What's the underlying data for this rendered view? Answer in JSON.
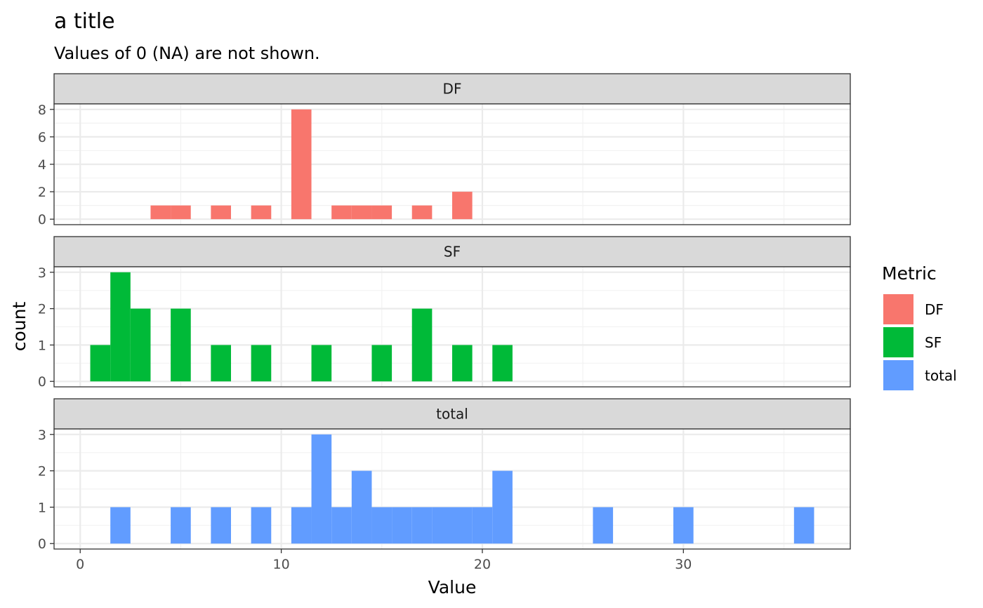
{
  "chart_data": {
    "type": "bar",
    "title": "a title",
    "subtitle": "Values of 0 (NA) are not shown.",
    "xlabel": "Value",
    "ylabel": "count",
    "xlim": [
      -1.3,
      38.3
    ],
    "x_ticks": [
      0,
      10,
      20,
      30
    ],
    "binwidth": 1,
    "grid": true,
    "legend": {
      "title": "Metric",
      "position": "right",
      "entries": [
        {
          "label": "DF",
          "color": "#F8766D"
        },
        {
          "label": "SF",
          "color": "#00BA38"
        },
        {
          "label": "total",
          "color": "#619CFF"
        }
      ]
    },
    "panels": [
      {
        "name": "DF",
        "color": "#F8766D",
        "ylim": [
          -0.4,
          8.4
        ],
        "y_ticks": [
          0,
          2,
          4,
          6,
          8
        ],
        "x": [
          4,
          5,
          7,
          9,
          11,
          13,
          14,
          15,
          17,
          19
        ],
        "counts": [
          1,
          1,
          1,
          1,
          8,
          1,
          1,
          1,
          1,
          2
        ]
      },
      {
        "name": "SF",
        "color": "#00BA38",
        "ylim": [
          -0.15,
          3.15
        ],
        "y_ticks": [
          0,
          1,
          2,
          3
        ],
        "x": [
          1,
          2,
          3,
          5,
          7,
          9,
          12,
          15,
          17,
          19,
          21
        ],
        "counts": [
          1,
          3,
          2,
          2,
          1,
          1,
          1,
          1,
          2,
          1,
          1
        ]
      },
      {
        "name": "total",
        "color": "#619CFF",
        "ylim": [
          -0.15,
          3.15
        ],
        "y_ticks": [
          0,
          1,
          2,
          3
        ],
        "x": [
          2,
          5,
          7,
          9,
          11,
          12,
          13,
          14,
          15,
          16,
          17,
          18,
          19,
          20,
          21,
          26,
          30,
          36
        ],
        "counts": [
          1,
          1,
          1,
          1,
          1,
          3,
          1,
          2,
          1,
          1,
          1,
          1,
          1,
          1,
          2,
          1,
          1,
          1
        ]
      }
    ]
  }
}
